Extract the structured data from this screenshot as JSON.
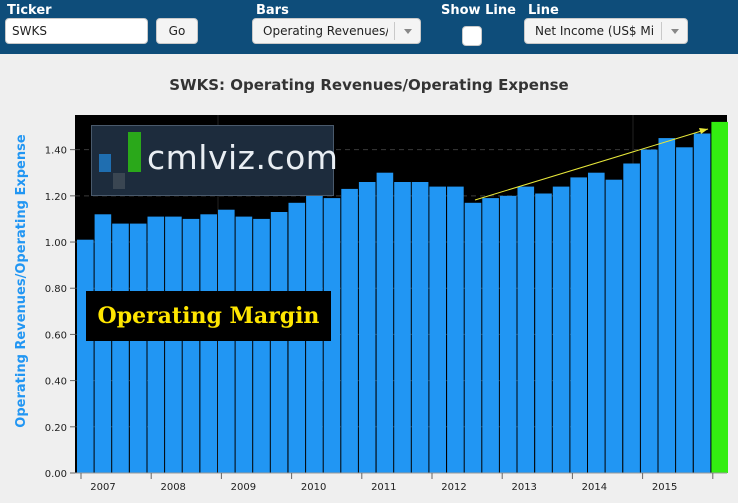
{
  "toolbar": {
    "ticker_label": "Ticker",
    "ticker_value": "SWKS",
    "go_label": "Go",
    "bars_label": "Bars",
    "bars_value": "Operating Revenues/Operating Expense",
    "show_line_label": "Show Line",
    "show_line_checked": false,
    "line_label": "Line",
    "line_value": "Net Income (US$ Millions)"
  },
  "logo": {
    "text": "cmlviz.com"
  },
  "overlay": {
    "text": "Operating Margin"
  },
  "colors": {
    "bar": "#2196f3",
    "highlight_bar": "#33ee11",
    "plot_bg": "#000000",
    "toolbar": "#0e4d7a",
    "trend_arrow": "#e8e83a"
  },
  "chart_data": {
    "type": "bar",
    "title": "SWKS: Operating Revenues/Operating Expense",
    "ylabel": "Operating Revenues/Operating Expense",
    "xlabel": "",
    "ylim": [
      0,
      1.55
    ],
    "y_ticks": [
      "0.00",
      "0.20",
      "0.40",
      "0.60",
      "0.80",
      "1.00",
      "1.20",
      "1.40"
    ],
    "x_ticks": [
      "2007",
      "2008",
      "2009",
      "2010",
      "2011",
      "2012",
      "2013",
      "2014",
      "2015"
    ],
    "values": [
      1.01,
      1.12,
      1.08,
      1.08,
      1.11,
      1.11,
      1.1,
      1.12,
      1.14,
      1.11,
      1.1,
      1.13,
      1.17,
      1.21,
      1.19,
      1.23,
      1.26,
      1.3,
      1.26,
      1.26,
      1.24,
      1.24,
      1.17,
      1.19,
      1.2,
      1.24,
      1.21,
      1.24,
      1.28,
      1.3,
      1.27,
      1.34,
      1.4,
      1.45,
      1.41,
      1.47,
      1.52
    ],
    "highlight_last": true,
    "grid": true,
    "annotation": "trend arrow rising from 2012 to 2015"
  }
}
